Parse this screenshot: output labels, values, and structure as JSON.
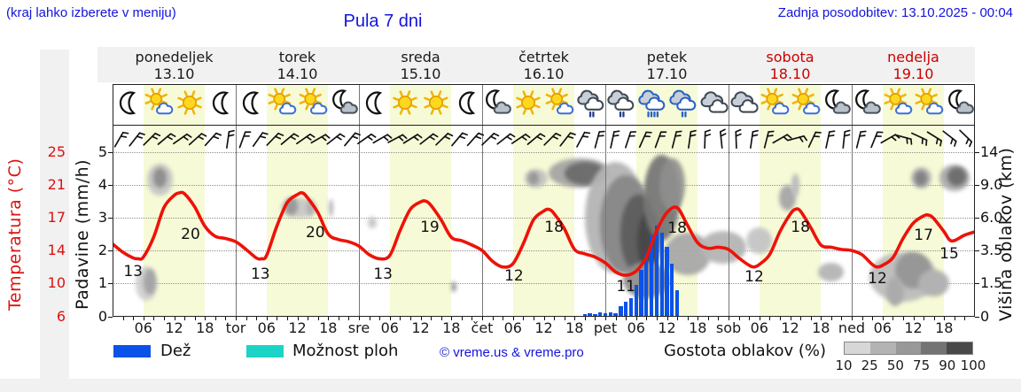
{
  "page": {
    "hint": "(kraj lahko izberete v meniju)",
    "title": "Pula 7 dni",
    "updated": "Zadnja posodobitev: 13.10.2025 - 00:04"
  },
  "colors": {
    "link_blue": "#1414dd",
    "temp_red": "#dd1111",
    "curve_red": "#ee1208",
    "day_red": "#cc0000",
    "day_black": "#1a1a1a",
    "rain_blue": "#0b52e8",
    "shower_cyan": "#1bd4c5",
    "band_yellow": "#f7fad6",
    "panel_gray": "#f1f1f1"
  },
  "axes": {
    "left_primary": {
      "label": "Temperatura (°C)",
      "ticks": [
        "25",
        "21",
        "17",
        "14",
        "10",
        "6"
      ]
    },
    "left_secondary": {
      "label": "Padavine (mm/h)",
      "ticks": [
        "5",
        "4",
        "3",
        "2",
        "1",
        "0"
      ]
    },
    "right": {
      "label": "Višina oblakov (km)",
      "ticks": [
        "14",
        "9.0",
        "6.0",
        "3.5",
        "1.5",
        "0"
      ]
    },
    "x": {
      "hour_labels": [
        "06",
        "12",
        "18"
      ],
      "day_boundary_labels": [
        "tor",
        "sre",
        "čet",
        "pet",
        "sob",
        "ned"
      ]
    }
  },
  "days": [
    {
      "name": "ponedeljek",
      "date": "13.10",
      "color": "#1a1a1a",
      "icons": [
        "moon",
        "sun-cloud",
        "sun",
        "moon"
      ]
    },
    {
      "name": "torek",
      "date": "14.10",
      "color": "#1a1a1a",
      "icons": [
        "moon",
        "sun-cloud",
        "sun-cloud",
        "moon-cloud"
      ]
    },
    {
      "name": "sreda",
      "date": "15.10",
      "color": "#1a1a1a",
      "icons": [
        "moon",
        "sun",
        "sun",
        "moon"
      ]
    },
    {
      "name": "četrtek",
      "date": "16.10",
      "color": "#1a1a1a",
      "icons": [
        "moon-cloud",
        "sun",
        "sun-cloud",
        "rain-light"
      ]
    },
    {
      "name": "petek",
      "date": "17.10",
      "color": "#1a1a1a",
      "icons": [
        "rain-light",
        "rain-heavy",
        "rain",
        "cloudy"
      ]
    },
    {
      "name": "sobota",
      "date": "18.10",
      "color": "#cc0000",
      "icons": [
        "cloudy",
        "sun-cloud",
        "sun-cloud",
        "moon-cloud"
      ]
    },
    {
      "name": "nedelja",
      "date": "19.10",
      "color": "#cc0000",
      "icons": [
        "moon-cloud",
        "sun-cloud",
        "sun-cloud",
        "moon-cloud"
      ]
    }
  ],
  "wind_barbs": {
    "angles_deg": [
      30,
      38,
      45,
      50,
      55,
      48,
      42,
      8,
      20,
      35,
      44,
      50,
      55,
      60,
      52,
      40,
      55,
      60,
      62,
      58,
      52,
      46,
      40,
      42,
      46,
      52,
      56,
      50,
      45,
      38,
      28,
      15,
      12,
      18,
      24,
      20,
      14,
      8,
      2,
      -6,
      -2,
      8,
      14,
      60,
      75,
      25,
      12,
      6,
      14,
      22,
      60,
      105,
      115,
      122,
      128,
      134
    ]
  },
  "chart_data": {
    "type": "line+bar+area",
    "title": "Pula 7 dni",
    "x_axis": "hours from Mon 13.10 00:00 (range 0–168, one tick every 2 h, day bands 06–18 shaded)",
    "y_left_temperature_ticks_c": [
      6,
      10,
      14,
      17,
      21,
      25
    ],
    "y_left_precip_ticks_mm_h": [
      0,
      1,
      2,
      3,
      4,
      5
    ],
    "y_right_cloud_height_ticks_km": [
      0,
      1.5,
      3.5,
      6,
      9,
      14
    ],
    "temperature_c": {
      "name": "Temperatura",
      "points": [
        [
          0,
          14.6
        ],
        [
          2,
          13.8
        ],
        [
          4,
          13.1
        ],
        [
          5,
          13.0
        ],
        [
          6,
          13.2
        ],
        [
          8,
          15.2
        ],
        [
          10,
          18.2
        ],
        [
          12,
          19.7
        ],
        [
          13,
          20.0
        ],
        [
          14,
          19.9
        ],
        [
          16,
          18.3
        ],
        [
          18,
          16.2
        ],
        [
          20,
          15.3
        ],
        [
          22,
          15.1
        ],
        [
          24,
          14.8
        ],
        [
          26,
          14.1
        ],
        [
          28,
          13.1
        ],
        [
          29,
          13.0
        ],
        [
          30,
          13.4
        ],
        [
          32,
          16.2
        ],
        [
          34,
          18.8
        ],
        [
          36,
          19.8
        ],
        [
          37,
          20.0
        ],
        [
          38,
          19.4
        ],
        [
          40,
          17.6
        ],
        [
          42,
          15.5
        ],
        [
          44,
          15.0
        ],
        [
          46,
          14.8
        ],
        [
          48,
          14.4
        ],
        [
          50,
          13.5
        ],
        [
          52,
          13.0
        ],
        [
          54,
          13.4
        ],
        [
          56,
          15.8
        ],
        [
          58,
          18.0
        ],
        [
          60,
          18.9
        ],
        [
          61,
          19.0
        ],
        [
          62,
          18.5
        ],
        [
          64,
          16.8
        ],
        [
          66,
          15.2
        ],
        [
          68,
          14.9
        ],
        [
          70,
          14.5
        ],
        [
          72,
          14.0
        ],
        [
          74,
          12.7
        ],
        [
          76,
          12.0
        ],
        [
          78,
          12.4
        ],
        [
          80,
          14.6
        ],
        [
          82,
          16.8
        ],
        [
          84,
          17.8
        ],
        [
          85,
          18.0
        ],
        [
          86,
          17.5
        ],
        [
          88,
          16.0
        ],
        [
          90,
          14.1
        ],
        [
          92,
          13.6
        ],
        [
          94,
          13.2
        ],
        [
          96,
          12.5
        ],
        [
          98,
          11.4
        ],
        [
          100,
          11.0
        ],
        [
          102,
          11.5
        ],
        [
          104,
          13.2
        ],
        [
          106,
          15.8
        ],
        [
          108,
          17.6
        ],
        [
          110,
          18.2
        ],
        [
          112,
          16.3
        ],
        [
          114,
          14.7
        ],
        [
          116,
          14.2
        ],
        [
          118,
          14.3
        ],
        [
          120,
          14.1
        ],
        [
          122,
          13.1
        ],
        [
          124,
          12.2
        ],
        [
          125,
          12.0
        ],
        [
          126,
          12.3
        ],
        [
          128,
          13.5
        ],
        [
          130,
          15.7
        ],
        [
          132,
          17.4
        ],
        [
          133,
          18.0
        ],
        [
          134,
          17.8
        ],
        [
          136,
          16.1
        ],
        [
          138,
          14.5
        ],
        [
          140,
          14.3
        ],
        [
          142,
          14.1
        ],
        [
          144,
          14.0
        ],
        [
          146,
          13.5
        ],
        [
          148,
          12.3
        ],
        [
          149,
          12.0
        ],
        [
          150,
          12.2
        ],
        [
          152,
          13.1
        ],
        [
          154,
          15.1
        ],
        [
          156,
          16.5
        ],
        [
          158,
          17.2
        ],
        [
          159,
          17.3
        ],
        [
          160,
          16.9
        ],
        [
          162,
          15.7
        ],
        [
          163,
          15.0
        ],
        [
          164,
          14.9
        ],
        [
          166,
          15.4
        ],
        [
          168,
          15.7
        ]
      ]
    },
    "temperature_labels": [
      {
        "hour": 4,
        "axis_units": 1.35,
        "text": "13"
      },
      {
        "hour": 15.2,
        "axis_units": 2.5,
        "text": "20"
      },
      {
        "hour": 28.8,
        "axis_units": 1.27,
        "text": "13"
      },
      {
        "hour": 39.5,
        "axis_units": 2.55,
        "text": "20"
      },
      {
        "hour": 52.7,
        "axis_units": 1.28,
        "text": "13"
      },
      {
        "hour": 61.8,
        "axis_units": 2.7,
        "text": "19"
      },
      {
        "hour": 78.2,
        "axis_units": 1.22,
        "text": "12"
      },
      {
        "hour": 86,
        "axis_units": 2.7,
        "text": "18"
      },
      {
        "hour": 100,
        "axis_units": 0.9,
        "text": "11"
      },
      {
        "hour": 110,
        "axis_units": 2.68,
        "text": "18"
      },
      {
        "hour": 125,
        "axis_units": 1.2,
        "text": "12"
      },
      {
        "hour": 134,
        "axis_units": 2.7,
        "text": "18"
      },
      {
        "hour": 149,
        "axis_units": 1.15,
        "text": "12"
      },
      {
        "hour": 158,
        "axis_units": 2.45,
        "text": "17"
      },
      {
        "hour": 163,
        "axis_units": 1.9,
        "text": "15"
      }
    ],
    "rain_mm_h": [
      [
        92,
        0.06
      ],
      [
        93,
        0.1
      ],
      [
        94,
        0.07
      ],
      [
        95,
        0.12
      ],
      [
        96,
        0.09
      ],
      [
        97,
        0.12
      ],
      [
        98,
        0.1
      ],
      [
        99,
        0.3
      ],
      [
        100,
        0.45
      ],
      [
        101,
        0.55
      ],
      [
        102,
        0.95
      ],
      [
        103,
        1.4
      ],
      [
        104,
        1.9
      ],
      [
        105,
        2.45
      ],
      [
        106,
        2.75
      ],
      [
        107,
        2.55
      ],
      [
        108,
        2.1
      ],
      [
        109,
        1.6
      ],
      [
        110,
        0.8
      ]
    ],
    "cloud_blobs": [
      {
        "t": 9.3,
        "c": 4.15,
        "w": 5,
        "h": 0.95,
        "col": "#c2c2c2",
        "o": 0.9
      },
      {
        "t": 9.3,
        "c": 4.2,
        "w": 2.6,
        "h": 0.6,
        "col": "#8f8f8f",
        "o": 1
      },
      {
        "t": 6.6,
        "c": 1.0,
        "w": 4.2,
        "h": 1.05,
        "col": "#cdcdcd",
        "o": 0.9
      },
      {
        "t": 7.2,
        "c": 1.05,
        "w": 2.4,
        "h": 0.8,
        "col": "#a5a5a5",
        "o": 1
      },
      {
        "t": 36.3,
        "c": 3.3,
        "w": 7,
        "h": 0.6,
        "col": "#c6c6c6",
        "o": 0.9
      },
      {
        "t": 34.8,
        "c": 3.35,
        "w": 2.6,
        "h": 0.55,
        "col": "#9a9a9a",
        "o": 1
      },
      {
        "t": 38.5,
        "c": 3.3,
        "w": 1.4,
        "h": 0.5,
        "col": "#b0b0b0",
        "o": 1
      },
      {
        "t": 42.6,
        "c": 3.3,
        "w": 0.9,
        "h": 0.55,
        "col": "#b5b5b5",
        "o": 1
      },
      {
        "t": 50.6,
        "c": 2.85,
        "w": 1.8,
        "h": 0.35,
        "col": "#cacaca",
        "o": 1
      },
      {
        "t": 66.5,
        "c": 0.9,
        "w": 1.1,
        "h": 0.3,
        "col": "#9f9f9f",
        "o": 1
      },
      {
        "t": 82.5,
        "c": 4.2,
        "w": 4.4,
        "h": 0.55,
        "col": "#c0c0c0",
        "o": 0.9
      },
      {
        "t": 82,
        "c": 4.2,
        "w": 2.2,
        "h": 0.4,
        "col": "#989898",
        "o": 1
      },
      {
        "t": 91,
        "c": 4.35,
        "w": 12,
        "h": 0.9,
        "col": "#a5a5a5",
        "o": 0.95
      },
      {
        "t": 92,
        "c": 4.35,
        "w": 8,
        "h": 0.7,
        "col": "#6e6e6e",
        "o": 1
      },
      {
        "t": 98,
        "c": 3.0,
        "w": 12,
        "h": 3.4,
        "col": "#b5b5b5",
        "o": 0.95
      },
      {
        "t": 100,
        "c": 2.8,
        "w": 10,
        "h": 3.0,
        "col": "#8a8a8a",
        "o": 1
      },
      {
        "t": 102.5,
        "c": 2.5,
        "w": 7,
        "h": 2.4,
        "col": "#5f5f5f",
        "o": 1
      },
      {
        "t": 104.5,
        "c": 2.3,
        "w": 4.5,
        "h": 1.8,
        "col": "#484848",
        "o": 1
      },
      {
        "t": 107,
        "c": 3.6,
        "w": 7,
        "h": 2.6,
        "col": "#777777",
        "o": 0.95
      },
      {
        "t": 109,
        "c": 4.0,
        "w": 5,
        "h": 1.6,
        "col": "#8f8f8f",
        "o": 0.9
      },
      {
        "t": 104,
        "c": 1.1,
        "w": 9,
        "h": 1.1,
        "col": "#8f8f8f",
        "o": 0.95
      },
      {
        "t": 112,
        "c": 1.9,
        "w": 9,
        "h": 1.3,
        "col": "#a8a8a8",
        "o": 0.95
      },
      {
        "t": 119,
        "c": 2.1,
        "w": 9,
        "h": 1.0,
        "col": "#b5b5b5",
        "o": 0.95
      },
      {
        "t": 126,
        "c": 2.3,
        "w": 5,
        "h": 0.8,
        "col": "#c2c2c2",
        "o": 0.9
      },
      {
        "t": 131.5,
        "c": 3.6,
        "w": 3.4,
        "h": 0.8,
        "col": "#aaaaaa",
        "o": 1
      },
      {
        "t": 133,
        "c": 4.0,
        "w": 1.6,
        "h": 0.7,
        "col": "#bcbcbc",
        "o": 1
      },
      {
        "t": 140,
        "c": 1.35,
        "w": 5,
        "h": 0.55,
        "col": "#b8b8b8",
        "o": 1
      },
      {
        "t": 154,
        "c": 1.2,
        "w": 13,
        "h": 1.5,
        "col": "#bdbdbd",
        "o": 0.95
      },
      {
        "t": 156,
        "c": 1.4,
        "w": 7,
        "h": 1.1,
        "col": "#979797",
        "o": 1
      },
      {
        "t": 152.5,
        "c": 0.75,
        "w": 3.5,
        "h": 0.9,
        "col": "#ababab",
        "o": 1
      },
      {
        "t": 160,
        "c": 1.0,
        "w": 6,
        "h": 0.8,
        "col": "#b2b2b2",
        "o": 1
      },
      {
        "t": 157.5,
        "c": 4.2,
        "w": 4,
        "h": 0.65,
        "col": "#b5b5b5",
        "o": 0.95
      },
      {
        "t": 157.5,
        "c": 4.2,
        "w": 2.4,
        "h": 0.45,
        "col": "#828282",
        "o": 1
      },
      {
        "t": 164,
        "c": 4.2,
        "w": 6,
        "h": 0.8,
        "col": "#ababab",
        "o": 0.95
      },
      {
        "t": 164.5,
        "c": 4.25,
        "w": 3.6,
        "h": 0.55,
        "col": "#6f6f6f",
        "o": 1
      }
    ]
  },
  "legend": {
    "rain_label": "Dež",
    "showers_label": "Možnost ploh",
    "copyright": "© vreme.us & vreme.pro",
    "cloud_density_label": "Gostota oblakov (%)",
    "density_ticks": [
      "10",
      "25",
      "50",
      "75",
      "90",
      "100"
    ],
    "density_colors": [
      "#d7d7d7",
      "#b3b3b3",
      "#989898",
      "#737373",
      "#484848"
    ]
  }
}
